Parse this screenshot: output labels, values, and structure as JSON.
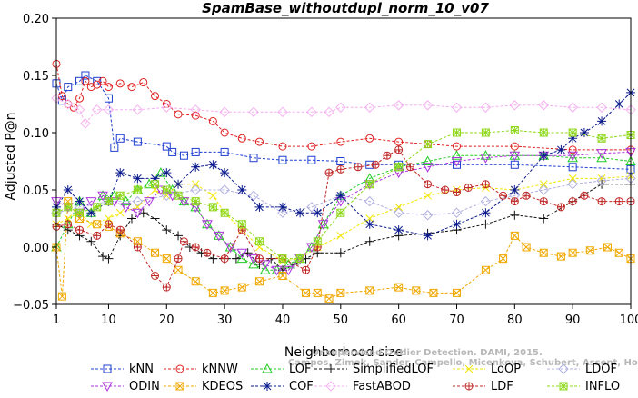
{
  "chart_data": {
    "type": "line",
    "title": "SpamBase_withoutdupl_norm_10_v07",
    "xlabel": "Neighborhood size",
    "ylabel": "Adjusted P@n",
    "xlim": [
      1,
      100
    ],
    "ylim": [
      -0.05,
      0.2
    ],
    "xticks": [
      1,
      10,
      20,
      30,
      40,
      50,
      60,
      70,
      80,
      90,
      100
    ],
    "yticks": [
      -0.05,
      0.0,
      0.05,
      0.1,
      0.15,
      0.2
    ],
    "ytick_labels": [
      "−0.05",
      "0.00",
      "0.05",
      "0.10",
      "0.15",
      "0.20"
    ],
    "grid": false,
    "legend_position": "bottom",
    "credit": "Campos, Zimek, Sander, Campello, Micenkova, Schubert, Assent, Houle",
    "credit_title": "Unsupervised Outlier Detection. DAMI, 2015.",
    "series": [
      {
        "name": "kNN",
        "color": "#1f3fd0",
        "marker": "square",
        "x": [
          1,
          2,
          3,
          5,
          6,
          8,
          10,
          11,
          12,
          15,
          20,
          21,
          23,
          25,
          30,
          35,
          40,
          45,
          50,
          55,
          60,
          70,
          80,
          90,
          100
        ],
        "values": [
          0.143,
          0.128,
          0.14,
          0.145,
          0.15,
          0.145,
          0.13,
          0.087,
          0.095,
          0.092,
          0.088,
          0.083,
          0.08,
          0.083,
          0.083,
          0.078,
          0.076,
          0.076,
          0.075,
          0.072,
          0.072,
          0.072,
          0.072,
          0.07,
          0.068
        ]
      },
      {
        "name": "kNNW",
        "color": "#e02020",
        "marker": "circle",
        "x": [
          1,
          2,
          3,
          4,
          5,
          6,
          7,
          8,
          9,
          10,
          12,
          14,
          16,
          18,
          20,
          22,
          25,
          28,
          30,
          33,
          36,
          40,
          45,
          50,
          55,
          60,
          65,
          70,
          80,
          90,
          100
        ],
        "values": [
          0.16,
          0.132,
          0.125,
          0.122,
          0.13,
          0.145,
          0.14,
          0.142,
          0.145,
          0.14,
          0.143,
          0.14,
          0.144,
          0.132,
          0.125,
          0.116,
          0.115,
          0.11,
          0.1,
          0.095,
          0.092,
          0.088,
          0.088,
          0.092,
          0.095,
          0.092,
          0.09,
          0.088,
          0.088,
          0.085,
          0.085
        ]
      },
      {
        "name": "LOF",
        "color": "#22cc22",
        "marker": "triangle",
        "x": [
          1,
          3,
          5,
          7,
          9,
          11,
          13,
          15,
          17,
          19,
          21,
          23,
          25,
          27,
          29,
          31,
          33,
          35,
          37,
          39,
          41,
          43,
          45,
          47,
          50,
          55,
          60,
          65,
          70,
          75,
          80,
          85,
          90,
          95,
          100
        ],
        "values": [
          0.0,
          0.02,
          0.04,
          0.03,
          0.045,
          0.045,
          0.04,
          0.05,
          0.055,
          0.065,
          0.05,
          0.04,
          0.035,
          0.02,
          0.01,
          0.0,
          -0.01,
          -0.015,
          -0.02,
          -0.02,
          -0.015,
          -0.01,
          0.0,
          0.02,
          0.045,
          0.06,
          0.07,
          0.075,
          0.08,
          0.08,
          0.08,
          0.08,
          0.078,
          0.078,
          0.075
        ]
      },
      {
        "name": "SimplifiedLOF",
        "color": "#111111",
        "marker": "plus",
        "x": [
          1,
          3,
          5,
          7,
          9,
          10,
          12,
          14,
          16,
          18,
          20,
          22,
          24,
          26,
          28,
          30,
          32,
          34,
          36,
          38,
          40,
          42,
          44,
          46,
          50,
          55,
          60,
          65,
          70,
          75,
          80,
          85,
          90,
          95,
          100
        ],
        "values": [
          0.02,
          0.015,
          0.01,
          0.005,
          -0.008,
          -0.01,
          0.01,
          0.025,
          0.03,
          0.025,
          0.015,
          0.01,
          0.0,
          -0.005,
          -0.01,
          -0.01,
          -0.01,
          -0.005,
          -0.015,
          -0.01,
          -0.02,
          -0.015,
          -0.01,
          -0.005,
          -0.005,
          0.005,
          0.01,
          0.012,
          0.015,
          0.02,
          0.028,
          0.025,
          0.04,
          0.055,
          0.055
        ]
      },
      {
        "name": "LoOP",
        "color": "#f2e600",
        "marker": "x",
        "x": [
          1,
          3,
          5,
          7,
          10,
          12,
          15,
          18,
          20,
          22,
          25,
          28,
          30,
          33,
          36,
          40,
          43,
          46,
          50,
          55,
          60,
          65,
          70,
          75,
          80,
          85,
          90,
          95,
          100
        ],
        "values": [
          0.02,
          0.025,
          0.03,
          0.02,
          0.025,
          0.03,
          0.035,
          0.05,
          0.045,
          0.055,
          0.055,
          0.045,
          0.03,
          0.015,
          0.0,
          -0.012,
          -0.01,
          0.0,
          0.01,
          0.025,
          0.035,
          0.045,
          0.05,
          0.052,
          0.05,
          0.055,
          0.06,
          0.06,
          0.062
        ]
      },
      {
        "name": "LDOF",
        "color": "#b0b0e0",
        "marker": "diamond",
        "x": [
          1,
          5,
          10,
          15,
          20,
          25,
          30,
          35,
          40,
          45,
          50,
          55,
          60,
          65,
          70,
          75,
          80,
          85,
          90,
          95,
          100
        ],
        "values": [
          0.03,
          0.035,
          0.04,
          0.04,
          0.045,
          0.05,
          0.05,
          0.045,
          0.03,
          0.035,
          0.045,
          0.04,
          0.03,
          0.028,
          0.03,
          0.04,
          0.045,
          0.05,
          0.055,
          0.058,
          0.06
        ]
      },
      {
        "name": "ODIN",
        "color": "#aa33dd",
        "marker": "triangle-down",
        "x": [
          1,
          3,
          5,
          7,
          9,
          11,
          13,
          15,
          17,
          19,
          21,
          23,
          25,
          27,
          29,
          31,
          33,
          35,
          37,
          39,
          41,
          43,
          45,
          47,
          50,
          55,
          60,
          65,
          70,
          75,
          80,
          85,
          90,
          95,
          100
        ],
        "values": [
          0.04,
          0.035,
          0.03,
          0.04,
          0.045,
          0.04,
          0.035,
          0.03,
          0.04,
          0.05,
          0.045,
          0.04,
          0.035,
          0.02,
          0.01,
          0.0,
          -0.005,
          -0.01,
          -0.015,
          -0.02,
          -0.02,
          -0.01,
          0.0,
          0.02,
          0.04,
          0.055,
          0.065,
          0.07,
          0.075,
          0.078,
          0.08,
          0.08,
          0.08,
          0.082,
          0.083
        ]
      },
      {
        "name": "KDEOS",
        "color": "#f0a800",
        "marker": "square-x",
        "x": [
          1,
          2,
          3,
          5,
          8,
          10,
          12,
          15,
          18,
          20,
          22,
          25,
          28,
          30,
          33,
          36,
          40,
          44,
          46,
          48,
          50,
          55,
          60,
          63,
          66,
          70,
          75,
          78,
          80,
          82,
          85,
          88,
          90,
          93,
          96,
          98,
          100
        ],
        "values": [
          0.0,
          -0.043,
          0.04,
          0.025,
          0.02,
          0.018,
          0.012,
          0.005,
          -0.005,
          -0.01,
          -0.02,
          -0.03,
          -0.04,
          -0.038,
          -0.035,
          -0.03,
          -0.025,
          -0.04,
          -0.04,
          -0.045,
          -0.04,
          -0.038,
          -0.035,
          -0.038,
          -0.04,
          -0.04,
          -0.02,
          -0.01,
          0.01,
          0.0,
          -0.005,
          -0.008,
          -0.005,
          -0.003,
          0.0,
          -0.005,
          -0.01
        ]
      },
      {
        "name": "COF",
        "color": "#0a1a8c",
        "marker": "star",
        "x": [
          1,
          3,
          5,
          7,
          10,
          12,
          15,
          18,
          20,
          22,
          25,
          28,
          30,
          33,
          36,
          40,
          43,
          46,
          50,
          55,
          60,
          65,
          70,
          75,
          80,
          85,
          88,
          90,
          92,
          95,
          98,
          100
        ],
        "values": [
          0.035,
          0.05,
          0.04,
          0.03,
          0.04,
          0.065,
          0.06,
          0.06,
          0.065,
          0.055,
          0.07,
          0.072,
          0.065,
          0.05,
          0.035,
          0.035,
          0.03,
          0.03,
          0.045,
          0.02,
          0.015,
          0.01,
          0.02,
          0.03,
          0.05,
          0.08,
          0.085,
          0.095,
          0.1,
          0.11,
          0.125,
          0.135
        ]
      },
      {
        "name": "FastABOD",
        "color": "#f4b0f0",
        "marker": "diamond",
        "x": [
          1,
          3,
          5,
          6,
          8,
          10,
          15,
          20,
          25,
          30,
          35,
          40,
          45,
          48,
          50,
          55,
          60,
          65,
          70,
          75,
          80,
          85,
          90,
          95,
          100
        ],
        "values": [
          0.13,
          0.125,
          0.12,
          0.108,
          0.12,
          0.12,
          0.12,
          0.122,
          0.12,
          0.118,
          0.118,
          0.118,
          0.118,
          0.118,
          0.122,
          0.122,
          0.124,
          0.124,
          0.122,
          0.122,
          0.124,
          0.124,
          0.122,
          0.122,
          0.12
        ]
      },
      {
        "name": "LDF",
        "color": "#c02828",
        "marker": "circle-plus",
        "x": [
          1,
          3,
          5,
          8,
          10,
          12,
          15,
          18,
          20,
          22,
          23,
          25,
          27,
          30,
          33,
          36,
          40,
          44,
          46,
          48,
          50,
          53,
          56,
          58,
          60,
          62,
          65,
          68,
          70,
          72,
          75,
          78,
          80,
          82,
          85,
          88,
          90,
          92,
          95,
          98,
          100
        ],
        "values": [
          0.018,
          0.02,
          0.015,
          0.01,
          0.02,
          0.015,
          0.0,
          -0.025,
          -0.035,
          -0.01,
          0.005,
          0.0,
          -0.005,
          -0.01,
          0.015,
          -0.01,
          -0.01,
          -0.02,
          0.0,
          0.065,
          0.068,
          0.07,
          0.072,
          0.08,
          0.085,
          0.07,
          0.055,
          0.05,
          0.048,
          0.052,
          0.055,
          0.045,
          0.04,
          0.045,
          0.04,
          0.035,
          0.04,
          0.045,
          0.04,
          0.04,
          0.04
        ]
      },
      {
        "name": "INFLO",
        "color": "#8ed81a",
        "marker": "star-box",
        "x": [
          1,
          3,
          5,
          8,
          10,
          12,
          15,
          18,
          20,
          22,
          25,
          28,
          30,
          33,
          36,
          40,
          43,
          46,
          50,
          55,
          60,
          65,
          70,
          75,
          80,
          85,
          90,
          95,
          100
        ],
        "values": [
          0.03,
          0.035,
          0.03,
          0.035,
          0.04,
          0.045,
          0.05,
          0.055,
          0.05,
          0.045,
          0.04,
          0.035,
          0.03,
          0.02,
          0.005,
          -0.01,
          -0.01,
          0.005,
          0.03,
          0.055,
          0.07,
          0.09,
          0.1,
          0.1,
          0.102,
          0.1,
          0.1,
          0.095,
          0.098
        ]
      }
    ]
  }
}
